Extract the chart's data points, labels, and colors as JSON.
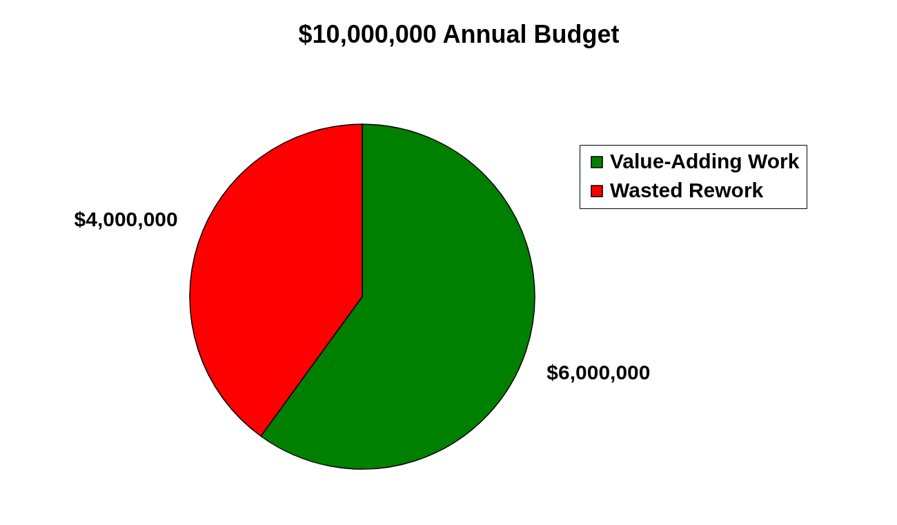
{
  "chart_data": {
    "type": "pie",
    "title": "$10,000,000 Annual Budget",
    "categories": [
      "Value-Adding Work",
      "Wasted Rework"
    ],
    "values": [
      6000000,
      4000000
    ],
    "colors": [
      "#008000",
      "#ff0000"
    ],
    "value_labels": [
      "$6,000,000",
      "$4,000,000"
    ],
    "legend": "top right"
  }
}
